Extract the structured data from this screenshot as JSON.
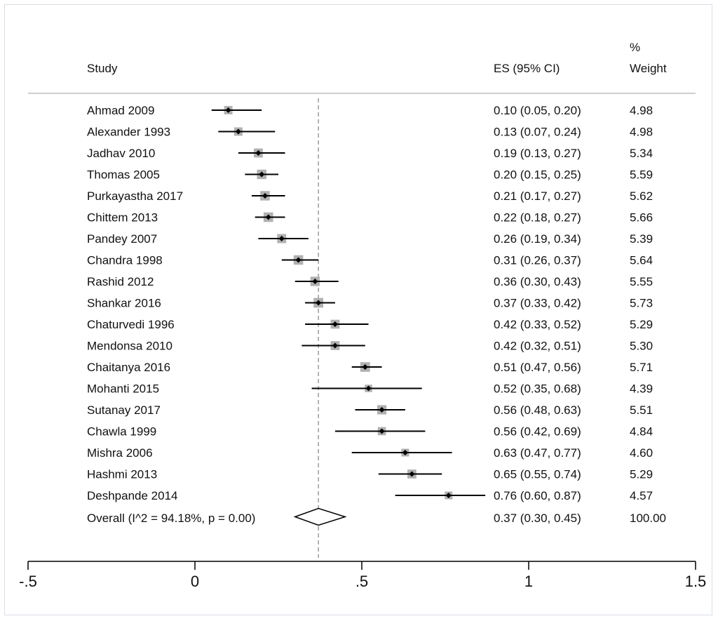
{
  "chart_data": {
    "type": "forest",
    "headers": {
      "study": "Study",
      "es": "ES (95% CI)",
      "weight_line1": "%",
      "weight_line2": "Weight"
    },
    "studies": [
      {
        "label": "Ahmad 2009",
        "es": 0.1,
        "lo": 0.05,
        "hi": 0.2,
        "es_text": "0.10 (0.05, 0.20)",
        "weight": "4.98"
      },
      {
        "label": "Alexander 1993",
        "es": 0.13,
        "lo": 0.07,
        "hi": 0.24,
        "es_text": "0.13 (0.07, 0.24)",
        "weight": "4.98"
      },
      {
        "label": "Jadhav 2010",
        "es": 0.19,
        "lo": 0.13,
        "hi": 0.27,
        "es_text": "0.19 (0.13, 0.27)",
        "weight": "5.34"
      },
      {
        "label": "Thomas 2005",
        "es": 0.2,
        "lo": 0.15,
        "hi": 0.25,
        "es_text": "0.20 (0.15, 0.25)",
        "weight": "5.59"
      },
      {
        "label": "Purkayastha 2017",
        "es": 0.21,
        "lo": 0.17,
        "hi": 0.27,
        "es_text": "0.21 (0.17, 0.27)",
        "weight": "5.62"
      },
      {
        "label": "Chittem 2013",
        "es": 0.22,
        "lo": 0.18,
        "hi": 0.27,
        "es_text": "0.22 (0.18, 0.27)",
        "weight": "5.66"
      },
      {
        "label": "Pandey 2007",
        "es": 0.26,
        "lo": 0.19,
        "hi": 0.34,
        "es_text": "0.26 (0.19, 0.34)",
        "weight": "5.39"
      },
      {
        "label": "Chandra 1998",
        "es": 0.31,
        "lo": 0.26,
        "hi": 0.37,
        "es_text": "0.31 (0.26, 0.37)",
        "weight": "5.64"
      },
      {
        "label": "Rashid 2012",
        "es": 0.36,
        "lo": 0.3,
        "hi": 0.43,
        "es_text": "0.36 (0.30, 0.43)",
        "weight": "5.55"
      },
      {
        "label": "Shankar 2016",
        "es": 0.37,
        "lo": 0.33,
        "hi": 0.42,
        "es_text": "0.37 (0.33, 0.42)",
        "weight": "5.73"
      },
      {
        "label": "Chaturvedi 1996",
        "es": 0.42,
        "lo": 0.33,
        "hi": 0.52,
        "es_text": "0.42 (0.33, 0.52)",
        "weight": "5.29"
      },
      {
        "label": "Mendonsa 2010",
        "es": 0.42,
        "lo": 0.32,
        "hi": 0.51,
        "es_text": "0.42 (0.32, 0.51)",
        "weight": "5.30"
      },
      {
        "label": "Chaitanya 2016",
        "es": 0.51,
        "lo": 0.47,
        "hi": 0.56,
        "es_text": "0.51 (0.47, 0.56)",
        "weight": "5.71"
      },
      {
        "label": "Mohanti 2015",
        "es": 0.52,
        "lo": 0.35,
        "hi": 0.68,
        "es_text": "0.52 (0.35, 0.68)",
        "weight": "4.39"
      },
      {
        "label": "Sutanay 2017",
        "es": 0.56,
        "lo": 0.48,
        "hi": 0.63,
        "es_text": "0.56 (0.48, 0.63)",
        "weight": "5.51"
      },
      {
        "label": "Chawla 1999",
        "es": 0.56,
        "lo": 0.42,
        "hi": 0.69,
        "es_text": "0.56 (0.42, 0.69)",
        "weight": "4.84"
      },
      {
        "label": "Mishra 2006",
        "es": 0.63,
        "lo": 0.47,
        "hi": 0.77,
        "es_text": "0.63 (0.47, 0.77)",
        "weight": "4.60"
      },
      {
        "label": "Hashmi 2013",
        "es": 0.65,
        "lo": 0.55,
        "hi": 0.74,
        "es_text": "0.65 (0.55, 0.74)",
        "weight": "5.29"
      },
      {
        "label": "Deshpande 2014",
        "es": 0.76,
        "lo": 0.6,
        "hi": 0.87,
        "es_text": "0.76 (0.60, 0.87)",
        "weight": "4.57"
      }
    ],
    "overall": {
      "label": "Overall  (I^2 = 94.18%, p = 0.00)",
      "es": 0.37,
      "lo": 0.3,
      "hi": 0.45,
      "es_text": "0.37 (0.30, 0.45)",
      "weight": "100.00"
    },
    "x_axis": {
      "xlim": [
        -0.5,
        1.5
      ],
      "ticks": [
        -0.5,
        0,
        0.5,
        1,
        1.5
      ],
      "tick_labels": [
        "-.5",
        "0",
        ".5",
        "1",
        "1.5"
      ]
    },
    "colors": {
      "weight_box": "#b0b0b0",
      "point": "#000000",
      "ci_line": "#000000",
      "reference_line": "#9a9a9a",
      "frame_border": "#d9dfe6"
    }
  }
}
